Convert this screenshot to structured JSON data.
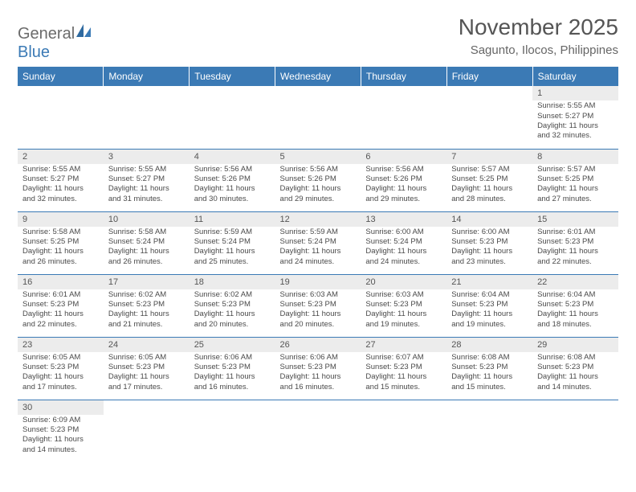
{
  "logo": {
    "text1": "General",
    "text2": "Blue"
  },
  "colors": {
    "header_bg": "#3b7ab5",
    "header_text": "#ffffff",
    "shade_bg": "#ececec",
    "cell_border": "#3b7ab5",
    "text": "#4a4a4a",
    "title": "#555555"
  },
  "title": "November 2025",
  "location": "Sagunto, Ilocos, Philippines",
  "day_headers": [
    "Sunday",
    "Monday",
    "Tuesday",
    "Wednesday",
    "Thursday",
    "Friday",
    "Saturday"
  ],
  "weeks": [
    [
      null,
      null,
      null,
      null,
      null,
      null,
      {
        "n": "1",
        "sr": "Sunrise: 5:55 AM",
        "ss": "Sunset: 5:27 PM",
        "d1": "Daylight: 11 hours",
        "d2": "and 32 minutes."
      }
    ],
    [
      {
        "n": "2",
        "sr": "Sunrise: 5:55 AM",
        "ss": "Sunset: 5:27 PM",
        "d1": "Daylight: 11 hours",
        "d2": "and 32 minutes."
      },
      {
        "n": "3",
        "sr": "Sunrise: 5:55 AM",
        "ss": "Sunset: 5:27 PM",
        "d1": "Daylight: 11 hours",
        "d2": "and 31 minutes."
      },
      {
        "n": "4",
        "sr": "Sunrise: 5:56 AM",
        "ss": "Sunset: 5:26 PM",
        "d1": "Daylight: 11 hours",
        "d2": "and 30 minutes."
      },
      {
        "n": "5",
        "sr": "Sunrise: 5:56 AM",
        "ss": "Sunset: 5:26 PM",
        "d1": "Daylight: 11 hours",
        "d2": "and 29 minutes."
      },
      {
        "n": "6",
        "sr": "Sunrise: 5:56 AM",
        "ss": "Sunset: 5:26 PM",
        "d1": "Daylight: 11 hours",
        "d2": "and 29 minutes."
      },
      {
        "n": "7",
        "sr": "Sunrise: 5:57 AM",
        "ss": "Sunset: 5:25 PM",
        "d1": "Daylight: 11 hours",
        "d2": "and 28 minutes."
      },
      {
        "n": "8",
        "sr": "Sunrise: 5:57 AM",
        "ss": "Sunset: 5:25 PM",
        "d1": "Daylight: 11 hours",
        "d2": "and 27 minutes."
      }
    ],
    [
      {
        "n": "9",
        "sr": "Sunrise: 5:58 AM",
        "ss": "Sunset: 5:25 PM",
        "d1": "Daylight: 11 hours",
        "d2": "and 26 minutes."
      },
      {
        "n": "10",
        "sr": "Sunrise: 5:58 AM",
        "ss": "Sunset: 5:24 PM",
        "d1": "Daylight: 11 hours",
        "d2": "and 26 minutes."
      },
      {
        "n": "11",
        "sr": "Sunrise: 5:59 AM",
        "ss": "Sunset: 5:24 PM",
        "d1": "Daylight: 11 hours",
        "d2": "and 25 minutes."
      },
      {
        "n": "12",
        "sr": "Sunrise: 5:59 AM",
        "ss": "Sunset: 5:24 PM",
        "d1": "Daylight: 11 hours",
        "d2": "and 24 minutes."
      },
      {
        "n": "13",
        "sr": "Sunrise: 6:00 AM",
        "ss": "Sunset: 5:24 PM",
        "d1": "Daylight: 11 hours",
        "d2": "and 24 minutes."
      },
      {
        "n": "14",
        "sr": "Sunrise: 6:00 AM",
        "ss": "Sunset: 5:23 PM",
        "d1": "Daylight: 11 hours",
        "d2": "and 23 minutes."
      },
      {
        "n": "15",
        "sr": "Sunrise: 6:01 AM",
        "ss": "Sunset: 5:23 PM",
        "d1": "Daylight: 11 hours",
        "d2": "and 22 minutes."
      }
    ],
    [
      {
        "n": "16",
        "sr": "Sunrise: 6:01 AM",
        "ss": "Sunset: 5:23 PM",
        "d1": "Daylight: 11 hours",
        "d2": "and 22 minutes."
      },
      {
        "n": "17",
        "sr": "Sunrise: 6:02 AM",
        "ss": "Sunset: 5:23 PM",
        "d1": "Daylight: 11 hours",
        "d2": "and 21 minutes."
      },
      {
        "n": "18",
        "sr": "Sunrise: 6:02 AM",
        "ss": "Sunset: 5:23 PM",
        "d1": "Daylight: 11 hours",
        "d2": "and 20 minutes."
      },
      {
        "n": "19",
        "sr": "Sunrise: 6:03 AM",
        "ss": "Sunset: 5:23 PM",
        "d1": "Daylight: 11 hours",
        "d2": "and 20 minutes."
      },
      {
        "n": "20",
        "sr": "Sunrise: 6:03 AM",
        "ss": "Sunset: 5:23 PM",
        "d1": "Daylight: 11 hours",
        "d2": "and 19 minutes."
      },
      {
        "n": "21",
        "sr": "Sunrise: 6:04 AM",
        "ss": "Sunset: 5:23 PM",
        "d1": "Daylight: 11 hours",
        "d2": "and 19 minutes."
      },
      {
        "n": "22",
        "sr": "Sunrise: 6:04 AM",
        "ss": "Sunset: 5:23 PM",
        "d1": "Daylight: 11 hours",
        "d2": "and 18 minutes."
      }
    ],
    [
      {
        "n": "23",
        "sr": "Sunrise: 6:05 AM",
        "ss": "Sunset: 5:23 PM",
        "d1": "Daylight: 11 hours",
        "d2": "and 17 minutes."
      },
      {
        "n": "24",
        "sr": "Sunrise: 6:05 AM",
        "ss": "Sunset: 5:23 PM",
        "d1": "Daylight: 11 hours",
        "d2": "and 17 minutes."
      },
      {
        "n": "25",
        "sr": "Sunrise: 6:06 AM",
        "ss": "Sunset: 5:23 PM",
        "d1": "Daylight: 11 hours",
        "d2": "and 16 minutes."
      },
      {
        "n": "26",
        "sr": "Sunrise: 6:06 AM",
        "ss": "Sunset: 5:23 PM",
        "d1": "Daylight: 11 hours",
        "d2": "and 16 minutes."
      },
      {
        "n": "27",
        "sr": "Sunrise: 6:07 AM",
        "ss": "Sunset: 5:23 PM",
        "d1": "Daylight: 11 hours",
        "d2": "and 15 minutes."
      },
      {
        "n": "28",
        "sr": "Sunrise: 6:08 AM",
        "ss": "Sunset: 5:23 PM",
        "d1": "Daylight: 11 hours",
        "d2": "and 15 minutes."
      },
      {
        "n": "29",
        "sr": "Sunrise: 6:08 AM",
        "ss": "Sunset: 5:23 PM",
        "d1": "Daylight: 11 hours",
        "d2": "and 14 minutes."
      }
    ],
    [
      {
        "n": "30",
        "sr": "Sunrise: 6:09 AM",
        "ss": "Sunset: 5:23 PM",
        "d1": "Daylight: 11 hours",
        "d2": "and 14 minutes."
      },
      null,
      null,
      null,
      null,
      null,
      null
    ]
  ]
}
